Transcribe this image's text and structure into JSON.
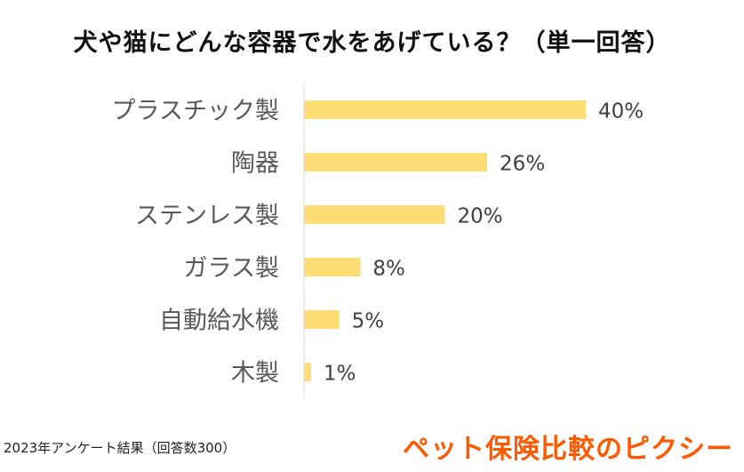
{
  "title": "犬や猫にどんな容器で水をあげている？（単一回答）",
  "footnote": "2023年アンケート結果（回答数300）",
  "brand_logo": "ペット保険比較のピクシー",
  "colors": {
    "bar": "#FEDD77",
    "axis": "#D9D9D9",
    "category_label": "#595959",
    "value_label": "#404040",
    "brand": "#FF5A00"
  },
  "chart_data": {
    "type": "bar",
    "orientation": "horizontal",
    "categories": [
      "プラスチック製",
      "陶器",
      "ステンレス製",
      "ガラス製",
      "自動給水機",
      "木製"
    ],
    "values": [
      40,
      26,
      20,
      8,
      5,
      1
    ],
    "value_labels": [
      "40%",
      "26%",
      "20%",
      "8%",
      "5%",
      "1%"
    ],
    "unit": "%",
    "xlim": [
      0,
      40
    ],
    "grid": false,
    "legend": "none"
  }
}
